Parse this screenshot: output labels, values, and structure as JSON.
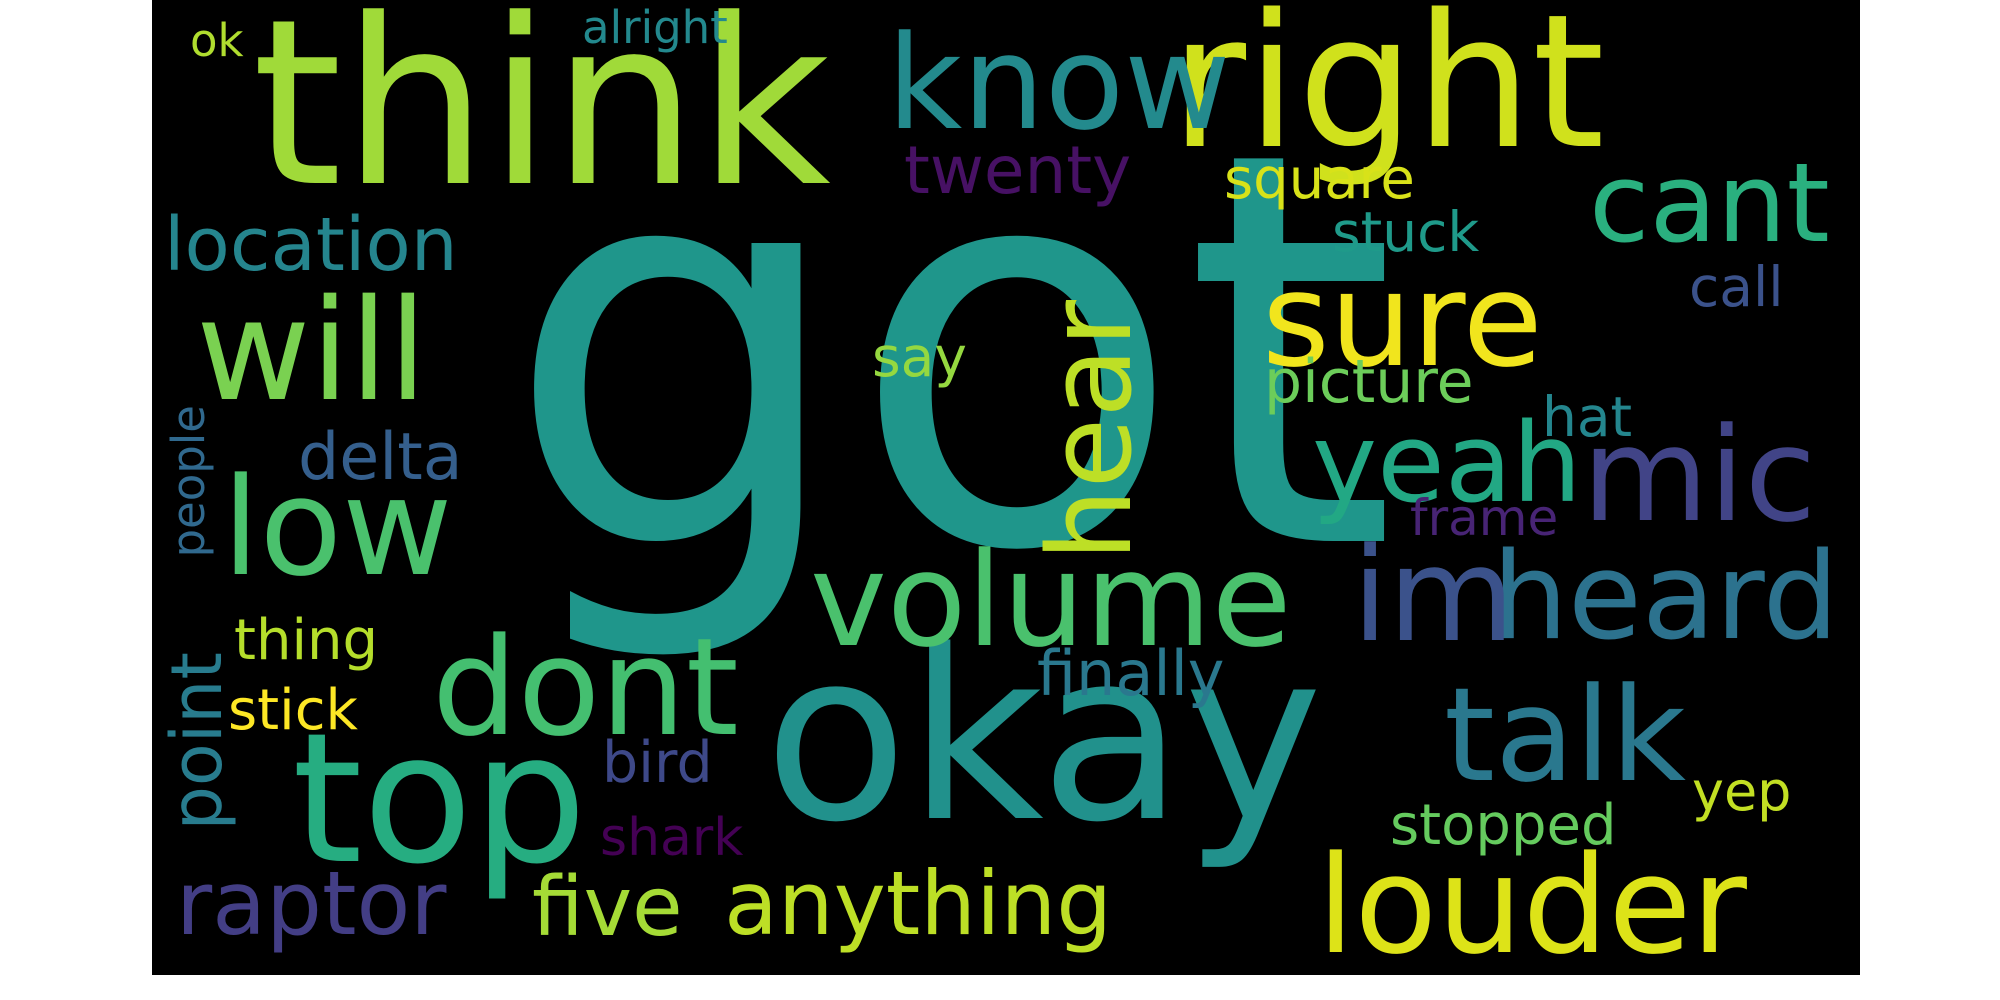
{
  "cloud": {
    "words": [
      {
        "text": "got",
        "color": "#1f968b"
      },
      {
        "text": "think",
        "color": "#a0da39"
      },
      {
        "text": "okay",
        "color": "#21918c"
      },
      {
        "text": "right",
        "color": "#d0e11c"
      },
      {
        "text": "know",
        "color": "#238a8d"
      },
      {
        "text": "top",
        "color": "#26ad81"
      },
      {
        "text": "will",
        "color": "#7ad151"
      },
      {
        "text": "sure",
        "color": "#f1e51d"
      },
      {
        "text": "low",
        "color": "#4ac16d"
      },
      {
        "text": "dont",
        "color": "#44bf70"
      },
      {
        "text": "volume",
        "color": "#4ac16d"
      },
      {
        "text": "louder",
        "color": "#dde318"
      },
      {
        "text": "hear",
        "color": "#bddf26"
      },
      {
        "text": "talk",
        "color": "#2a788e"
      },
      {
        "text": "mic",
        "color": "#414487"
      },
      {
        "text": "heard",
        "color": "#2c728e"
      },
      {
        "text": "im",
        "color": "#3b528b"
      },
      {
        "text": "yeah",
        "color": "#22a884"
      },
      {
        "text": "cant",
        "color": "#2ab07f"
      },
      {
        "text": "anything",
        "color": "#bddf26"
      },
      {
        "text": "raptor",
        "color": "#433e85"
      },
      {
        "text": "location",
        "color": "#25858e"
      },
      {
        "text": "twenty",
        "color": "#471164"
      },
      {
        "text": "delta",
        "color": "#355f8d"
      },
      {
        "text": "five",
        "color": "#a5db36"
      },
      {
        "text": "point",
        "color": "#287c8e"
      },
      {
        "text": "finally",
        "color": "#2a788e"
      },
      {
        "text": "picture",
        "color": "#6ccd5a"
      },
      {
        "text": "square",
        "color": "#d8e219"
      },
      {
        "text": "stuck",
        "color": "#1f9a8a"
      },
      {
        "text": "call",
        "color": "#3b528b"
      },
      {
        "text": "thing",
        "color": "#b5de2b"
      },
      {
        "text": "stick",
        "color": "#fde725"
      },
      {
        "text": "bird",
        "color": "#3e4989"
      },
      {
        "text": "shark",
        "color": "#440154"
      },
      {
        "text": "stopped",
        "color": "#65cb5e"
      },
      {
        "text": "yep",
        "color": "#c2df23"
      },
      {
        "text": "frame",
        "color": "#482475"
      },
      {
        "text": "hat",
        "color": "#24868e"
      },
      {
        "text": "say",
        "color": "#95d840"
      },
      {
        "text": "people",
        "color": "#30698e"
      },
      {
        "text": "ok",
        "color": "#b0dd2f"
      },
      {
        "text": "alright",
        "color": "#23898e"
      }
    ]
  }
}
